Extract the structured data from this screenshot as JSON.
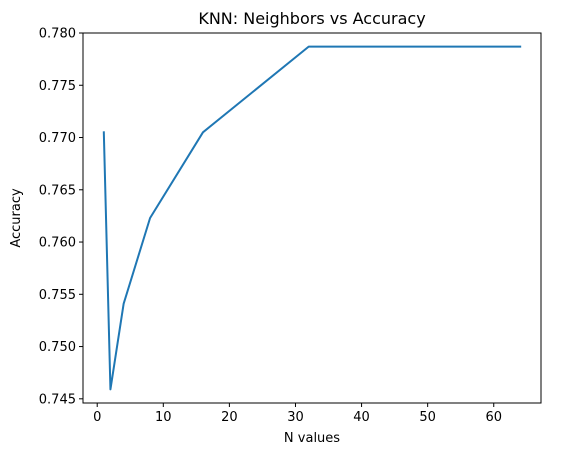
{
  "chart_data": {
    "type": "line",
    "title": "KNN: Neighbors vs Accuracy",
    "xlabel": "N values",
    "ylabel": "Accuracy",
    "xlim": [
      -2.15,
      67.15
    ],
    "ylim": [
      0.7446,
      0.78
    ],
    "xticks": [
      0,
      10,
      20,
      30,
      40,
      50,
      60
    ],
    "yticks": [
      0.745,
      0.75,
      0.755,
      0.76,
      0.765,
      0.77,
      0.775,
      0.78
    ],
    "ytick_labels": [
      "0.745",
      "0.750",
      "0.755",
      "0.760",
      "0.765",
      "0.770",
      "0.775",
      "0.780"
    ],
    "grid": false,
    "series": [
      {
        "color": "#1f77b4",
        "x": [
          1,
          2,
          4,
          8,
          16,
          32,
          64
        ],
        "y": [
          0.7705,
          0.7459,
          0.7541,
          0.7623,
          0.7705,
          0.7787,
          0.7787
        ]
      }
    ]
  }
}
